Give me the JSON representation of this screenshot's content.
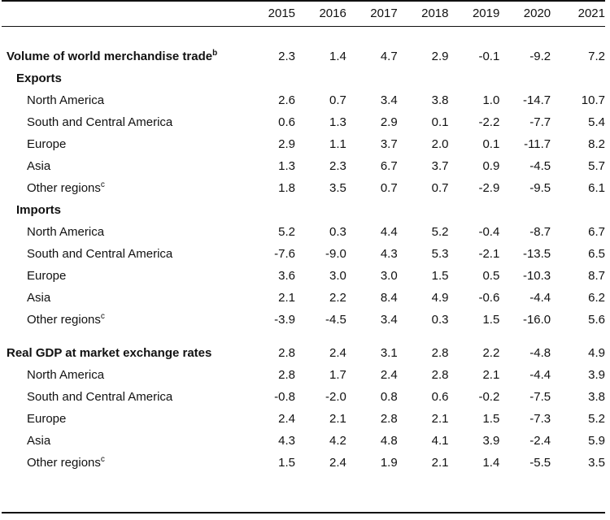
{
  "years": [
    "2015",
    "2016",
    "2017",
    "2018",
    "2019",
    "2020",
    "2021"
  ],
  "world_trade": {
    "label": "Volume of world merchandise trade",
    "note": "b",
    "values": [
      "2.3",
      "1.4",
      "4.7",
      "2.9",
      "-0.1",
      "-9.2",
      "7.2"
    ]
  },
  "exports": {
    "heading": "Exports",
    "rows": [
      {
        "label": "North America",
        "note": "",
        "values": [
          "2.6",
          "0.7",
          "3.4",
          "3.8",
          "1.0",
          "-14.7",
          "10.7"
        ]
      },
      {
        "label": "South and Central America",
        "note": "",
        "values": [
          "0.6",
          "1.3",
          "2.9",
          "0.1",
          "-2.2",
          "-7.7",
          "5.4"
        ]
      },
      {
        "label": "Europe",
        "note": "",
        "values": [
          "2.9",
          "1.1",
          "3.7",
          "2.0",
          "0.1",
          "-11.7",
          "8.2"
        ]
      },
      {
        "label": "Asia",
        "note": "",
        "values": [
          "1.3",
          "2.3",
          "6.7",
          "3.7",
          "0.9",
          "-4.5",
          "5.7"
        ]
      },
      {
        "label": "Other regions",
        "note": "c",
        "values": [
          "1.8",
          "3.5",
          "0.7",
          "0.7",
          "-2.9",
          "-9.5",
          "6.1"
        ]
      }
    ]
  },
  "imports": {
    "heading": "Imports",
    "rows": [
      {
        "label": "North America",
        "note": "",
        "values": [
          "5.2",
          "0.3",
          "4.4",
          "5.2",
          "-0.4",
          "-8.7",
          "6.7"
        ]
      },
      {
        "label": "South and Central America",
        "note": "",
        "values": [
          "-7.6",
          "-9.0",
          "4.3",
          "5.3",
          "-2.1",
          "-13.5",
          "6.5"
        ]
      },
      {
        "label": "Europe",
        "note": "",
        "values": [
          "3.6",
          "3.0",
          "3.0",
          "1.5",
          "0.5",
          "-10.3",
          "8.7"
        ]
      },
      {
        "label": "Asia",
        "note": "",
        "values": [
          "2.1",
          "2.2",
          "8.4",
          "4.9",
          "-0.6",
          "-4.4",
          "6.2"
        ]
      },
      {
        "label": "Other regions",
        "note": "c",
        "values": [
          "-3.9",
          "-4.5",
          "3.4",
          "0.3",
          "1.5",
          "-16.0",
          "5.6"
        ]
      }
    ]
  },
  "gdp": {
    "label": "Real GDP at market exchange rates",
    "values": [
      "2.8",
      "2.4",
      "3.1",
      "2.8",
      "2.2",
      "-4.8",
      "4.9"
    ],
    "rows": [
      {
        "label": "North America",
        "note": "",
        "values": [
          "2.8",
          "1.7",
          "2.4",
          "2.8",
          "2.1",
          "-4.4",
          "3.9"
        ]
      },
      {
        "label": "South and Central America",
        "note": "",
        "values": [
          "-0.8",
          "-2.0",
          "0.8",
          "0.6",
          "-0.2",
          "-7.5",
          "3.8"
        ]
      },
      {
        "label": "Europe",
        "note": "",
        "values": [
          "2.4",
          "2.1",
          "2.8",
          "2.1",
          "1.5",
          "-7.3",
          "5.2"
        ]
      },
      {
        "label": "Asia",
        "note": "",
        "values": [
          "4.3",
          "4.2",
          "4.8",
          "4.1",
          "3.9",
          "-2.4",
          "5.9"
        ]
      },
      {
        "label": "Other regions",
        "note": "c",
        "values": [
          "1.5",
          "2.4",
          "1.9",
          "2.1",
          "1.4",
          "-5.5",
          "3.5"
        ]
      }
    ]
  }
}
